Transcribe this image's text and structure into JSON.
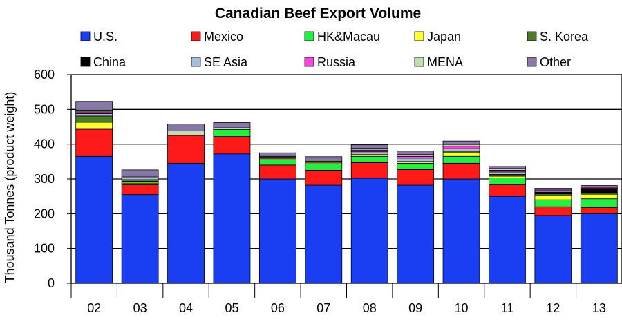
{
  "chart_data": {
    "type": "bar",
    "stacked": true,
    "title": "Canadian Beef Export Volume",
    "xlabel": "",
    "ylabel": "Thousand Tonnes (product weight)",
    "ylim": [
      0,
      600
    ],
    "yticks": [
      0,
      100,
      200,
      300,
      400,
      500,
      600
    ],
    "grid": true,
    "legend_position": "top",
    "categories": [
      "02",
      "03",
      "04",
      "05",
      "06",
      "07",
      "08",
      "09",
      "10",
      "11",
      "12",
      "13"
    ],
    "series": [
      {
        "name": "U.S.",
        "color": "#1a3ff2",
        "values": [
          365,
          255,
          345,
          372,
          300,
          282,
          302,
          282,
          300,
          250,
          195,
          200
        ]
      },
      {
        "name": "Mexico",
        "color": "#ff1a1a",
        "values": [
          78,
          28,
          80,
          50,
          40,
          43,
          45,
          45,
          45,
          33,
          25,
          18
        ]
      },
      {
        "name": "HK&Macau",
        "color": "#22ee44",
        "values": [
          0,
          5,
          0,
          20,
          15,
          18,
          18,
          18,
          20,
          20,
          20,
          25
        ]
      },
      {
        "name": "Japan",
        "color": "#ffff33",
        "values": [
          20,
          5,
          0,
          0,
          3,
          3,
          5,
          5,
          10,
          5,
          12,
          13
        ]
      },
      {
        "name": "S. Korea",
        "color": "#4a7a2a",
        "values": [
          18,
          5,
          0,
          0,
          0,
          0,
          0,
          0,
          5,
          5,
          5,
          5
        ]
      },
      {
        "name": "China",
        "color": "#000000",
        "values": [
          0,
          0,
          0,
          0,
          0,
          0,
          0,
          0,
          0,
          0,
          5,
          12
        ]
      },
      {
        "name": "SE Asia",
        "color": "#a8bce0",
        "values": [
          7,
          5,
          0,
          0,
          5,
          5,
          8,
          10,
          7,
          7,
          3,
          0
        ]
      },
      {
        "name": "Russia",
        "color": "#ff44dd",
        "values": [
          5,
          0,
          0,
          0,
          0,
          0,
          5,
          5,
          7,
          5,
          3,
          3
        ]
      },
      {
        "name": "MENA",
        "color": "#c0ddb0",
        "values": [
          5,
          3,
          13,
          5,
          2,
          3,
          5,
          5,
          5,
          5,
          0,
          0
        ]
      },
      {
        "name": "Other",
        "color": "#8878a8",
        "values": [
          25,
          20,
          20,
          15,
          10,
          10,
          10,
          10,
          10,
          7,
          5,
          5
        ]
      }
    ]
  }
}
